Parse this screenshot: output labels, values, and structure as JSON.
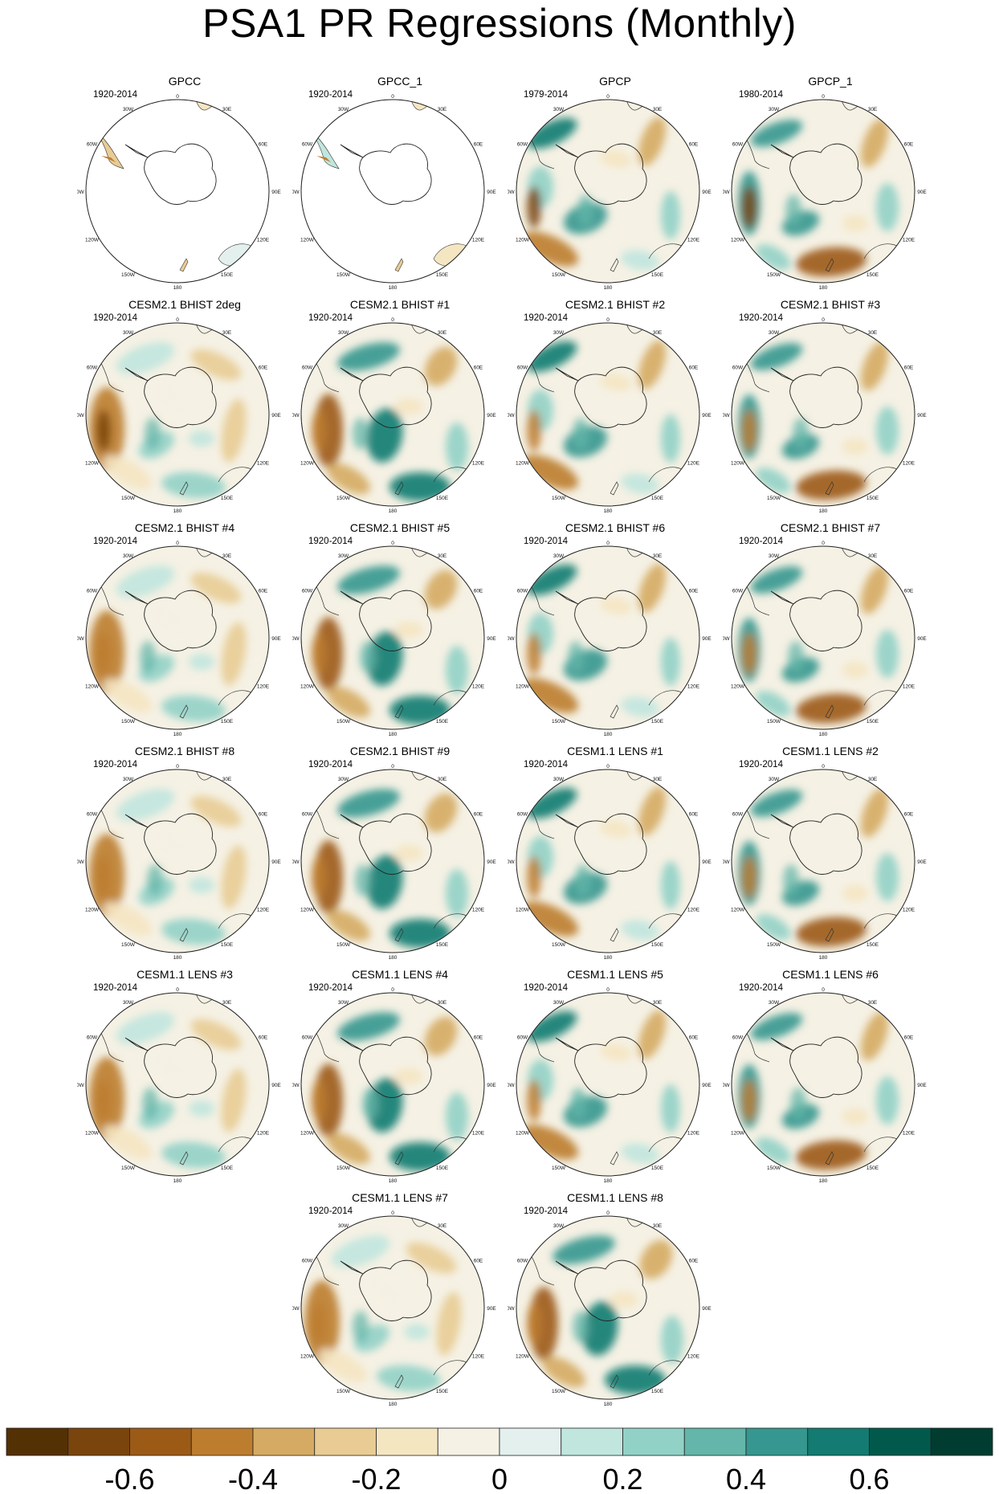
{
  "title": "PSA1 PR Regressions (Monthly)",
  "map_labels": {
    "top": "0",
    "top_right": "30E",
    "right_upper": "60E",
    "right": "90E",
    "right_lower": "120E",
    "bottom_right": "150E",
    "bottom": "180",
    "bottom_left": "150W",
    "left_lower": "120W",
    "left": "90W",
    "left_upper": "60W",
    "top_left": "30W"
  },
  "panels": [
    {
      "title": "GPCC",
      "years": "1920-2014",
      "coverage": "land"
    },
    {
      "title": "GPCC_1",
      "years": "1920-2014",
      "coverage": "land"
    },
    {
      "title": "GPCP",
      "years": "1979-2014",
      "coverage": "full"
    },
    {
      "title": "GPCP_1",
      "years": "1980-2014",
      "coverage": "full"
    },
    {
      "title": "CESM2.1 BHIST 2deg",
      "years": "1920-2014",
      "coverage": "full"
    },
    {
      "title": "CESM2.1 BHIST #1",
      "years": "1920-2014",
      "coverage": "full"
    },
    {
      "title": "CESM2.1 BHIST #2",
      "years": "1920-2014",
      "coverage": "full"
    },
    {
      "title": "CESM2.1 BHIST #3",
      "years": "1920-2014",
      "coverage": "full"
    },
    {
      "title": "CESM2.1 BHIST #4",
      "years": "1920-2014",
      "coverage": "full"
    },
    {
      "title": "CESM2.1 BHIST #5",
      "years": "1920-2014",
      "coverage": "full"
    },
    {
      "title": "CESM2.1 BHIST #6",
      "years": "1920-2014",
      "coverage": "full"
    },
    {
      "title": "CESM2.1 BHIST #7",
      "years": "1920-2014",
      "coverage": "full"
    },
    {
      "title": "CESM2.1 BHIST #8",
      "years": "1920-2014",
      "coverage": "full"
    },
    {
      "title": "CESM2.1 BHIST #9",
      "years": "1920-2014",
      "coverage": "full"
    },
    {
      "title": "CESM1.1 LENS #1",
      "years": "1920-2014",
      "coverage": "full"
    },
    {
      "title": "CESM1.1 LENS #2",
      "years": "1920-2014",
      "coverage": "full"
    },
    {
      "title": "CESM1.1 LENS #3",
      "years": "1920-2014",
      "coverage": "full"
    },
    {
      "title": "CESM1.1 LENS #4",
      "years": "1920-2014",
      "coverage": "full"
    },
    {
      "title": "CESM1.1 LENS #5",
      "years": "1920-2014",
      "coverage": "full"
    },
    {
      "title": "CESM1.1 LENS #6",
      "years": "1920-2014",
      "coverage": "full"
    },
    {
      "title": "CESM1.1 LENS #7",
      "years": "1920-2014",
      "coverage": "full"
    },
    {
      "title": "CESM1.1 LENS #8",
      "years": "1920-2014",
      "coverage": "full"
    }
  ],
  "colorbar": {
    "colors": [
      "#543005",
      "#7a440d",
      "#9c5a17",
      "#bd7d2f",
      "#d5ab63",
      "#e8cc94",
      "#f5e6c2",
      "#f5f1e4",
      "#e3f0ee",
      "#c0e6de",
      "#92d2c6",
      "#63b6a9",
      "#35978f",
      "#137b71",
      "#01594c",
      "#003c30"
    ],
    "tick_labels": [
      "-0.6",
      "-0.4",
      "-0.2",
      "0",
      "0.2",
      "0.4",
      "0.6"
    ]
  }
}
